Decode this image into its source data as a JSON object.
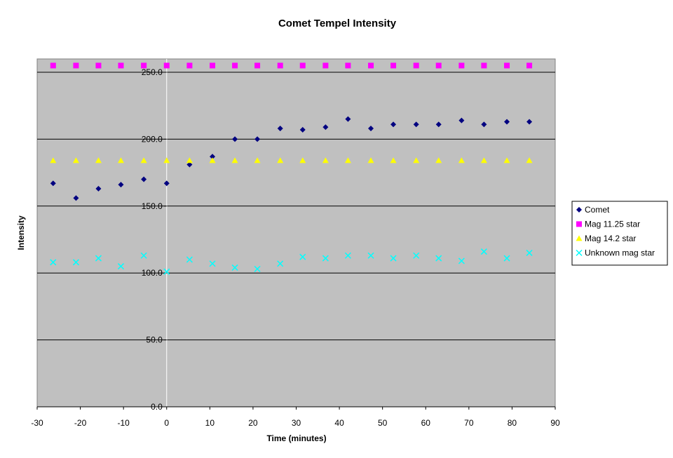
{
  "chart_data": {
    "type": "scatter",
    "title": "Comet Tempel Intensity",
    "xlabel": "Time (minutes)",
    "ylabel": "Intensity",
    "xlim": [
      -30,
      90
    ],
    "ylim": [
      0,
      250
    ],
    "x_ticks": [
      -30,
      -20,
      -10,
      0,
      10,
      20,
      30,
      40,
      50,
      60,
      70,
      80,
      90
    ],
    "y_ticks": [
      "0.0",
      "50.0",
      "100.0",
      "150.0",
      "200.0",
      "250.0"
    ],
    "y_tick_values": [
      0,
      50,
      100,
      150,
      200,
      250
    ],
    "grid": "horizontal",
    "legend_position": "right",
    "plot_background": "#c0c0c0",
    "x": [
      -26.3,
      -21,
      -15.8,
      -10.6,
      -5.3,
      0,
      5.3,
      10.6,
      15.8,
      21,
      26.3,
      31.5,
      36.8,
      42,
      47.3,
      52.5,
      57.8,
      63,
      68.3,
      73.5,
      78.8,
      84
    ],
    "series": [
      {
        "name": "Comet",
        "marker": "diamond",
        "color": "#000080",
        "values": [
          167,
          156,
          163,
          166,
          170,
          167,
          181,
          187,
          200,
          200,
          208,
          207,
          209,
          215,
          208,
          211,
          211,
          211,
          214,
          211,
          213,
          213
        ]
      },
      {
        "name": "Mag 11.25 star",
        "marker": "square",
        "color": "#ff00ff",
        "values": [
          255,
          255,
          255,
          255,
          255,
          255,
          255,
          255,
          255,
          255,
          255,
          255,
          255,
          255,
          255,
          255,
          255,
          255,
          255,
          255,
          255,
          255
        ]
      },
      {
        "name": "Mag 14.2 star",
        "marker": "triangle",
        "color": "#ffff00",
        "values": [
          184,
          184,
          184,
          184,
          184,
          184,
          184,
          184,
          184,
          184,
          184,
          184,
          184,
          184,
          184,
          184,
          184,
          184,
          184,
          184,
          184,
          184
        ]
      },
      {
        "name": "Unknown mag star",
        "marker": "x",
        "color": "#00ffff",
        "values": [
          108,
          108,
          111,
          105,
          113,
          101,
          110,
          107,
          104,
          103,
          107,
          112,
          111,
          113,
          113,
          111,
          113,
          111,
          109,
          116,
          111,
          115
        ]
      }
    ]
  }
}
